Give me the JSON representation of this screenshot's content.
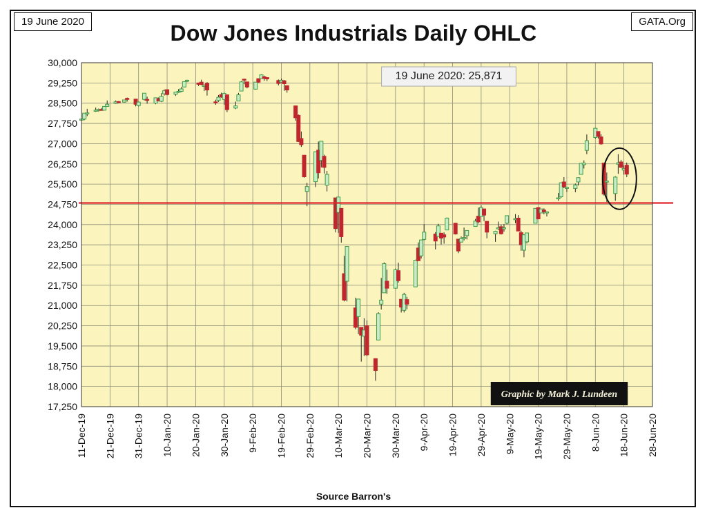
{
  "header": {
    "date_tag": "19 June 2020",
    "site_tag": "GATA.Org",
    "title": "Dow Jones Industrials Daily OHLC",
    "source": "Source Barron's"
  },
  "chart_data": {
    "type": "candlestick",
    "title": "Dow Jones Industrials Daily OHLC",
    "xlabel": "",
    "ylabel": "",
    "ylim": [
      17250,
      30000
    ],
    "y_ticks": [
      17250,
      18000,
      18750,
      19500,
      20250,
      21000,
      21750,
      22500,
      23250,
      24000,
      24750,
      25500,
      26250,
      27000,
      27750,
      28500,
      29250,
      30000
    ],
    "y_tick_labels": [
      "17,250",
      "18,000",
      "18,750",
      "19,500",
      "20,250",
      "21,000",
      "21,750",
      "22,500",
      "23,250",
      "24,000",
      "24,750",
      "25,500",
      "26,250",
      "27,000",
      "27,750",
      "28,500",
      "29,250",
      "30,000"
    ],
    "x_range": [
      "2019-12-11",
      "2020-06-28"
    ],
    "x_tick_labels": [
      "11-Dec-19",
      "21-Dec-19",
      "31-Dec-19",
      "10-Jan-20",
      "20-Jan-20",
      "30-Jan-20",
      "9-Feb-20",
      "19-Feb-20",
      "29-Feb-20",
      "10-Mar-20",
      "20-Mar-20",
      "30-Mar-20",
      "9-Apr-20",
      "19-Apr-20",
      "29-Apr-20",
      "9-May-20",
      "19-May-20",
      "29-May-20",
      "8-Jun-20",
      "18-Jun-20",
      "28-Jun-20"
    ],
    "x_tick_dates": [
      "2019-12-11",
      "2019-12-21",
      "2019-12-31",
      "2020-01-10",
      "2020-01-20",
      "2020-01-30",
      "2020-02-09",
      "2020-02-19",
      "2020-02-29",
      "2020-03-10",
      "2020-03-20",
      "2020-03-30",
      "2020-04-09",
      "2020-04-19",
      "2020-04-29",
      "2020-05-09",
      "2020-05-19",
      "2020-05-29",
      "2020-06-08",
      "2020-06-18",
      "2020-06-28"
    ],
    "grid": true,
    "up_color": "#3f9b46",
    "up_body_color": "#c9ecc8",
    "down_color": "#c0262d",
    "plot_background": "#fbf5bd",
    "reference_line": {
      "value": 24800,
      "color": "#e0242b"
    },
    "annotation": "19 June 2020: 25,871",
    "credit": "Graphic by Mark J. Lundeen",
    "highlight": "circle around 12-Jun to 19-Jun 2020 candles",
    "ohlc": [
      [
        "2019-12-11",
        27870,
        27930,
        27800,
        27910
      ],
      [
        "2019-12-12",
        27910,
        28130,
        27870,
        28130
      ],
      [
        "2019-12-13",
        28130,
        28290,
        28020,
        28140
      ],
      [
        "2019-12-16",
        28200,
        28340,
        28180,
        28240
      ],
      [
        "2019-12-17",
        28240,
        28300,
        28190,
        28270
      ],
      [
        "2019-12-18",
        28270,
        28320,
        28230,
        28240
      ],
      [
        "2019-12-19",
        28240,
        28380,
        28230,
        28380
      ],
      [
        "2019-12-20",
        28380,
        28600,
        28370,
        28460
      ],
      [
        "2019-12-23",
        28490,
        28600,
        28470,
        28550
      ],
      [
        "2019-12-24",
        28560,
        28580,
        28500,
        28520
      ],
      [
        "2019-12-26",
        28540,
        28630,
        28520,
        28620
      ],
      [
        "2019-12-27",
        28680,
        28710,
        28560,
        28640
      ],
      [
        "2019-12-30",
        28650,
        28660,
        28380,
        28460
      ],
      [
        "2019-12-31",
        28410,
        28560,
        28380,
        28540
      ],
      [
        "2020-01-02",
        28640,
        28870,
        28600,
        28870
      ],
      [
        "2020-01-03",
        28640,
        28740,
        28480,
        28630
      ],
      [
        "2020-01-06",
        28500,
        28710,
        28460,
        28700
      ],
      [
        "2020-01-07",
        28670,
        28710,
        28570,
        28580
      ],
      [
        "2020-01-08",
        28570,
        28870,
        28540,
        28750
      ],
      [
        "2020-01-09",
        28850,
        29010,
        28780,
        28960
      ],
      [
        "2020-01-10",
        29000,
        29010,
        28790,
        28820
      ],
      [
        "2020-01-13",
        28830,
        28910,
        28770,
        28910
      ],
      [
        "2020-01-14",
        28910,
        29020,
        28880,
        28940
      ],
      [
        "2020-01-15",
        28940,
        29100,
        28910,
        29030
      ],
      [
        "2020-01-16",
        29100,
        29300,
        29090,
        29300
      ],
      [
        "2020-01-17",
        29350,
        29370,
        29280,
        29350
      ],
      [
        "2020-01-21",
        29250,
        29260,
        29140,
        29200
      ],
      [
        "2020-01-22",
        29280,
        29370,
        29170,
        29190
      ],
      [
        "2020-01-23",
        29120,
        29200,
        28950,
        29160
      ],
      [
        "2020-01-24",
        29240,
        29280,
        28780,
        28990
      ],
      [
        "2020-01-27",
        28550,
        28630,
        28440,
        28540
      ],
      [
        "2020-01-28",
        28600,
        28800,
        28550,
        28720
      ],
      [
        "2020-01-29",
        28820,
        28890,
        28700,
        28730
      ],
      [
        "2020-01-30",
        28640,
        28890,
        28440,
        28860
      ],
      [
        "2020-01-31",
        28810,
        28820,
        28170,
        28260
      ],
      [
        "2020-02-03",
        28320,
        28560,
        28280,
        28400
      ],
      [
        "2020-02-04",
        28580,
        28880,
        28580,
        28810
      ],
      [
        "2020-02-05",
        28950,
        29320,
        28950,
        29290
      ],
      [
        "2020-02-06",
        29390,
        29410,
        29200,
        29380
      ],
      [
        "2020-02-07",
        29290,
        29290,
        29050,
        29100
      ],
      [
        "2020-02-10",
        29020,
        29280,
        29000,
        29280
      ],
      [
        "2020-02-11",
        29410,
        29420,
        29260,
        29280
      ],
      [
        "2020-02-12",
        29410,
        29570,
        29410,
        29550
      ],
      [
        "2020-02-13",
        29480,
        29520,
        29330,
        29420
      ],
      [
        "2020-02-14",
        29450,
        29450,
        29320,
        29400
      ],
      [
        "2020-02-18",
        29340,
        29380,
        29160,
        29230
      ],
      [
        "2020-02-19",
        29280,
        29410,
        29260,
        29350
      ],
      [
        "2020-02-20",
        29330,
        29360,
        28960,
        29220
      ],
      [
        "2020-02-21",
        29150,
        29150,
        28890,
        28990
      ],
      [
        "2020-02-24",
        28400,
        28400,
        27850,
        27960
      ],
      [
        "2020-02-25",
        28050,
        28080,
        27060,
        27080
      ],
      [
        "2020-02-26",
        27190,
        27450,
        26880,
        26960
      ],
      [
        "2020-02-27",
        26570,
        26580,
        25740,
        25770
      ],
      [
        "2020-02-28",
        25230,
        25550,
        24680,
        25410
      ],
      [
        "2020-03-02",
        25590,
        26710,
        25390,
        26700
      ],
      [
        "2020-03-03",
        26760,
        27080,
        25710,
        25920
      ],
      [
        "2020-03-04",
        26380,
        27100,
        26120,
        27090
      ],
      [
        "2020-03-05",
        26530,
        26590,
        25890,
        26120
      ],
      [
        "2020-03-06",
        25460,
        25990,
        25230,
        25860
      ],
      [
        "2020-03-09",
        24990,
        24990,
        23710,
        23850
      ],
      [
        "2020-03-10",
        24450,
        25020,
        23690,
        25020
      ],
      [
        "2020-03-11",
        24600,
        24600,
        23330,
        23550
      ],
      [
        "2020-03-12",
        22180,
        22840,
        21150,
        21200
      ],
      [
        "2020-03-13",
        21900,
        23190,
        21150,
        23190
      ],
      [
        "2020-03-16",
        20910,
        21290,
        20120,
        20190
      ],
      [
        "2020-03-17",
        20590,
        21240,
        19940,
        21240
      ],
      [
        "2020-03-18",
        20190,
        20190,
        18920,
        19900
      ],
      [
        "2020-03-19",
        19860,
        20530,
        19130,
        20090
      ],
      [
        "2020-03-20",
        20250,
        20450,
        19120,
        19170
      ],
      [
        "2020-03-23",
        19030,
        19030,
        18210,
        18590
      ],
      [
        "2020-03-24",
        19720,
        20750,
        19720,
        20700
      ],
      [
        "2020-03-25",
        21050,
        22020,
        20850,
        21200
      ],
      [
        "2020-03-26",
        21470,
        22600,
        21470,
        22550
      ],
      [
        "2020-03-27",
        21900,
        22330,
        21430,
        21640
      ],
      [
        "2020-03-30",
        21640,
        22370,
        21630,
        22330
      ],
      [
        "2020-03-31",
        22290,
        22590,
        21850,
        21920
      ],
      [
        "2020-04-01",
        21230,
        21230,
        20740,
        20940
      ],
      [
        "2020-04-02",
        20820,
        21470,
        20740,
        21410
      ],
      [
        "2020-04-03",
        21220,
        21320,
        20860,
        21050
      ],
      [
        "2020-04-06",
        21690,
        22700,
        21690,
        22680
      ],
      [
        "2020-04-07",
        23130,
        23340,
        22650,
        22660
      ],
      [
        "2020-04-08",
        22840,
        23440,
        22740,
        23430
      ],
      [
        "2020-04-09",
        23450,
        24010,
        23420,
        23720
      ],
      [
        "2020-04-13",
        23650,
        23720,
        23080,
        23390
      ],
      [
        "2020-04-14",
        23560,
        24030,
        23560,
        23950
      ],
      [
        "2020-04-15",
        23680,
        23680,
        23260,
        23500
      ],
      [
        "2020-04-16",
        23620,
        23710,
        23290,
        23540
      ],
      [
        "2020-04-17",
        23800,
        24260,
        23800,
        24240
      ],
      [
        "2020-04-20",
        24050,
        24060,
        23630,
        23650
      ],
      [
        "2020-04-21",
        23460,
        23460,
        22940,
        23020
      ],
      [
        "2020-04-22",
        23350,
        23560,
        23350,
        23480
      ],
      [
        "2020-04-23",
        23480,
        23890,
        23410,
        23520
      ],
      [
        "2020-04-24",
        23590,
        23790,
        23450,
        23780
      ],
      [
        "2020-04-27",
        23930,
        24210,
        23930,
        24130
      ],
      [
        "2020-04-28",
        24310,
        24630,
        24040,
        24100
      ],
      [
        "2020-04-29",
        24300,
        24710,
        24300,
        24630
      ],
      [
        "2020-04-30",
        24580,
        24590,
        24130,
        24350
      ],
      [
        "2020-05-01",
        24120,
        24120,
        23490,
        23720
      ],
      [
        "2020-05-04",
        23660,
        23770,
        23360,
        23750
      ],
      [
        "2020-05-05",
        23880,
        24110,
        23800,
        23880
      ],
      [
        "2020-05-06",
        23920,
        24000,
        23630,
        23660
      ],
      [
        "2020-05-07",
        23870,
        24020,
        23740,
        23880
      ],
      [
        "2020-05-08",
        24050,
        24340,
        24010,
        24330
      ],
      [
        "2020-05-11",
        24180,
        24390,
        24050,
        24220
      ],
      [
        "2020-05-12",
        24240,
        24350,
        23760,
        23760
      ],
      [
        "2020-05-13",
        23700,
        23770,
        23030,
        23250
      ],
      [
        "2020-05-14",
        23050,
        23640,
        22790,
        23620
      ],
      [
        "2020-05-15",
        23360,
        23700,
        23300,
        23690
      ],
      [
        "2020-05-18",
        24050,
        24580,
        24050,
        24600
      ],
      [
        "2020-05-19",
        24630,
        24640,
        24200,
        24210
      ],
      [
        "2020-05-20",
        24430,
        24580,
        24430,
        24580
      ],
      [
        "2020-05-21",
        24540,
        24600,
        24380,
        24470
      ],
      [
        "2020-05-22",
        24460,
        24490,
        24300,
        24470
      ],
      [
        "2020-05-26",
        24980,
        25170,
        24880,
        24990
      ],
      [
        "2020-05-27",
        25030,
        25560,
        24990,
        25550
      ],
      [
        "2020-05-28",
        25580,
        25760,
        25350,
        25400
      ],
      [
        "2020-05-29",
        25340,
        25400,
        25210,
        25380
      ],
      [
        "2020-06-01",
        25340,
        25520,
        25200,
        25470
      ],
      [
        "2020-06-02",
        25580,
        25750,
        25450,
        25740
      ],
      [
        "2020-06-03",
        25860,
        26270,
        25860,
        26270
      ],
      [
        "2020-06-04",
        26220,
        26380,
        26080,
        26280
      ],
      [
        "2020-06-05",
        26750,
        27340,
        26610,
        27110
      ],
      [
        "2020-06-08",
        27230,
        27580,
        27190,
        27570
      ],
      [
        "2020-06-09",
        27450,
        27450,
        27190,
        27270
      ],
      [
        "2020-06-10",
        27250,
        27350,
        26960,
        26990
      ],
      [
        "2020-06-11",
        26280,
        26280,
        25080,
        25130
      ],
      [
        "2020-06-12",
        25600,
        25930,
        24840,
        25610
      ],
      [
        "2020-06-15",
        25150,
        25790,
        24880,
        25760
      ],
      [
        "2020-06-16",
        26240,
        26610,
        25880,
        26290
      ],
      [
        "2020-06-17",
        26320,
        26400,
        26100,
        26120
      ],
      [
        "2020-06-18",
        26020,
        26200,
        25850,
        26080
      ],
      [
        "2020-06-19",
        26200,
        26300,
        25760,
        25870
      ]
    ]
  }
}
